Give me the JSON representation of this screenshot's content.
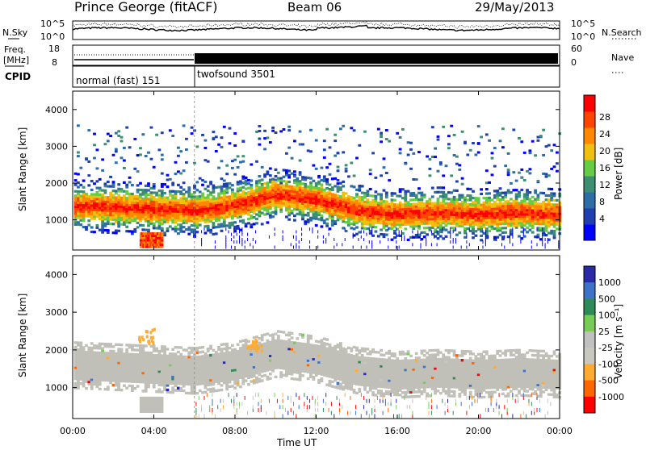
{
  "header": {
    "station": "Prince George (fitACF)",
    "beam": "Beam 06",
    "date": "29/May/2013"
  },
  "noise_panel": {
    "left_label": "N.Sky",
    "left_ticks": [
      "10^5",
      "10^0"
    ],
    "right_ticks": [
      "10^5",
      "10^0"
    ],
    "right_label": "N.Search"
  },
  "freq_panel": {
    "left_label_1": "Freq.",
    "left_label_2": "[MHz]",
    "left_ticks": [
      "18",
      "8"
    ],
    "right_ticks": [
      "60",
      "0"
    ],
    "right_label": "Nave"
  },
  "cpid_panel": {
    "label": "CPID",
    "modes": [
      "normal (fast) 151",
      "twofsound 3501"
    ],
    "mode_switch_hour": 6
  },
  "axes": {
    "ylabel": "Slant Range [km]",
    "yticks": [
      "1000",
      "2000",
      "3000",
      "4000"
    ],
    "xticks": [
      "00:00",
      "04:00",
      "08:00",
      "12:00",
      "16:00",
      "20:00",
      "00:00"
    ],
    "xlabel": "Time UT"
  },
  "power_colorbar": {
    "label": "Power [dB]",
    "ticks": [
      "28",
      "24",
      "20",
      "16",
      "12",
      "8",
      "4"
    ]
  },
  "velocity_colorbar": {
    "label": "Velocity [m s⁻¹]",
    "ticks": [
      "1000",
      "500",
      "100",
      "25",
      "-25",
      "-100",
      "-500",
      "-1000"
    ]
  },
  "chart_data": {
    "type": "heatmap",
    "x_range_hours": [
      0,
      24
    ],
    "y_range_km": [
      180,
      4500
    ],
    "power_band_centerline": [
      {
        "t": 0,
        "range": 1400
      },
      {
        "t": 2,
        "range": 1350
      },
      {
        "t": 4,
        "range": 1300
      },
      {
        "t": 6,
        "range": 1250
      },
      {
        "t": 8,
        "range": 1400
      },
      {
        "t": 10,
        "range": 1700
      },
      {
        "t": 12,
        "range": 1550
      },
      {
        "t": 14,
        "range": 1250
      },
      {
        "t": 16,
        "range": 1150
      },
      {
        "t": 18,
        "range": 1200
      },
      {
        "t": 20,
        "range": 1150
      },
      {
        "t": 22,
        "range": 1200
      },
      {
        "t": 24,
        "range": 1150
      }
    ],
    "power_colors": [
      "#0000ff",
      "#1f3fb0",
      "#2e6ea6",
      "#3e8f72",
      "#66cc44",
      "#f0c010",
      "#ff8800",
      "#ff4400",
      "#ff0000"
    ],
    "velocity_colors": [
      "#2a2aa8",
      "#3e72c8",
      "#2e8b57",
      "#77cc55",
      "#c0c0c0",
      "#c8c8c0",
      "#ffaa33",
      "#ff6600",
      "#ff0000"
    ],
    "ground_scatter_color": "#c0c0b8"
  }
}
